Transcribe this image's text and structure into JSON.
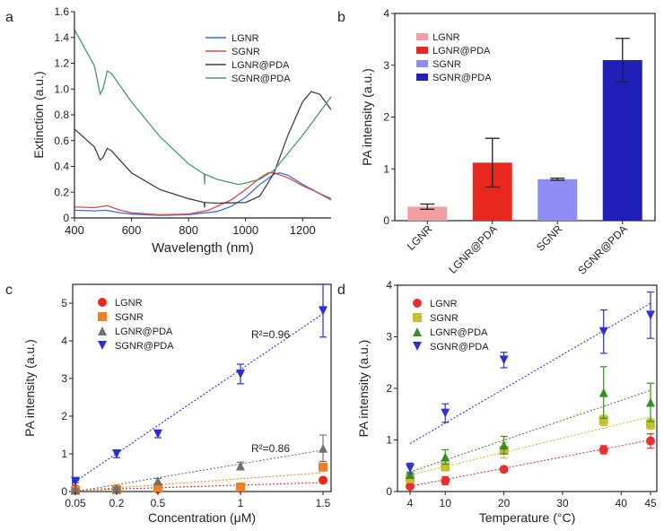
{
  "chart_data": [
    {
      "panel": "a",
      "type": "line",
      "xlabel": "Wavelength (nm)",
      "ylabel": "Extinction (a.u.)",
      "xlim": [
        400,
        1300
      ],
      "ylim": [
        0,
        1.6
      ],
      "xticks": [
        400,
        600,
        800,
        1000,
        1200
      ],
      "yticks": [
        0,
        0.2,
        0.4,
        0.6,
        0.8,
        1.0,
        1.2,
        1.4,
        1.6
      ],
      "ytick_labels": [
        "0",
        "0.2",
        "0.4",
        "0.6",
        "0.8",
        "1.0",
        "1.2",
        "1.4",
        "1.6"
      ],
      "legend": "top-right",
      "series": [
        {
          "name": "LGNR",
          "color": "#3a6fd8",
          "x": [
            400,
            470,
            510,
            560,
            600,
            700,
            800,
            900,
            950,
            1000,
            1050,
            1100,
            1120,
            1150,
            1200,
            1250,
            1300
          ],
          "y": [
            0.06,
            0.055,
            0.06,
            0.04,
            0.03,
            0.02,
            0.025,
            0.05,
            0.09,
            0.16,
            0.26,
            0.34,
            0.35,
            0.33,
            0.26,
            0.2,
            0.15
          ]
        },
        {
          "name": "SGNR",
          "color": "#e04848",
          "x": [
            400,
            470,
            515,
            560,
            600,
            700,
            800,
            870,
            950,
            1000,
            1050,
            1080,
            1100,
            1150,
            1200,
            1250,
            1300
          ],
          "y": [
            0.085,
            0.08,
            0.095,
            0.06,
            0.04,
            0.025,
            0.03,
            0.06,
            0.14,
            0.22,
            0.31,
            0.35,
            0.35,
            0.31,
            0.25,
            0.2,
            0.14
          ]
        },
        {
          "name": "LGNR@PDA",
          "color": "#404040",
          "x": [
            400,
            470,
            490,
            500,
            515,
            530,
            600,
            700,
            800,
            855,
            856,
            857,
            900,
            1000,
            1050,
            1100,
            1150,
            1200,
            1230,
            1260,
            1300
          ],
          "y": [
            0.69,
            0.55,
            0.45,
            0.47,
            0.54,
            0.52,
            0.35,
            0.22,
            0.15,
            0.12,
            0.08,
            0.12,
            0.115,
            0.12,
            0.17,
            0.35,
            0.65,
            0.9,
            0.98,
            0.96,
            0.84
          ]
        },
        {
          "name": "SGNR@PDA",
          "color": "#4a9a68",
          "x": [
            400,
            470,
            490,
            500,
            515,
            530,
            600,
            700,
            800,
            855,
            856,
            857,
            900,
            975,
            1000,
            1050,
            1100,
            1200,
            1300
          ],
          "y": [
            1.46,
            1.18,
            0.96,
            1.0,
            1.14,
            1.12,
            0.9,
            0.63,
            0.42,
            0.34,
            0.26,
            0.34,
            0.3,
            0.26,
            0.27,
            0.3,
            0.37,
            0.64,
            0.94
          ]
        }
      ]
    },
    {
      "panel": "b",
      "type": "bar",
      "ylabel": "PA intensity (a.u.)",
      "ylim": [
        0,
        4
      ],
      "yticks": [
        0,
        1,
        2,
        3,
        4
      ],
      "legend": "top-left",
      "categories": [
        "LGNR",
        "LGNR@PDA",
        "SGNR",
        "SGNR@PDA"
      ],
      "values": [
        0.27,
        1.12,
        0.8,
        3.1
      ],
      "errors": [
        0.05,
        0.47,
        0.02,
        0.42
      ],
      "colors": [
        "#f0a0a0",
        "#e8271e",
        "#8d8df5",
        "#2020b8"
      ]
    },
    {
      "panel": "c",
      "type": "scatter",
      "xlabel": "Concentration (μM)",
      "ylabel": "PA intensity (a.u.)",
      "ylim": [
        0,
        5.5
      ],
      "yticks": [
        0,
        1,
        2,
        3,
        4,
        5
      ],
      "xticks": [
        "0.05",
        "0.2",
        "0.5",
        "1",
        "1.5"
      ],
      "legend": "top-left",
      "annotations": [
        "R²=0.96",
        "R²=0.86"
      ],
      "series": [
        {
          "name": "LGNR",
          "color": "#e8271e",
          "marker": "circle",
          "y": [
            0.07,
            0.06,
            0.06,
            0.08,
            0.3
          ],
          "err": [
            0.02,
            0.02,
            0.02,
            0.03,
            0.03
          ],
          "fit": [
            0.03,
            0.24
          ]
        },
        {
          "name": "SGNR",
          "color": "#f08020",
          "marker": "square",
          "y": [
            0.03,
            0.05,
            0.1,
            0.12,
            0.65
          ],
          "err": [
            0.01,
            0.01,
            0.02,
            0.03,
            0.05
          ],
          "fit": [
            0.02,
            0.5
          ]
        },
        {
          "name": "LGNR@PDA",
          "color": "#707070",
          "marker": "triangle",
          "y": [
            0.05,
            0.08,
            0.28,
            0.68,
            1.15
          ],
          "err": [
            0.02,
            0.02,
            0.07,
            0.1,
            0.35
          ],
          "fit": [
            0.0,
            1.1
          ]
        },
        {
          "name": "SGNR@PDA",
          "color": "#2a2ae0",
          "marker": "triangle-down",
          "y": [
            0.27,
            1.0,
            1.53,
            3.12,
            4.8
          ],
          "err": [
            0.03,
            0.1,
            0.1,
            0.26,
            0.7
          ],
          "fit": [
            0.27,
            4.72
          ]
        }
      ]
    },
    {
      "panel": "d",
      "type": "scatter",
      "xlabel": "Temperature (°C)",
      "ylabel": "PA intensity (a.u.)",
      "xlim": [
        4,
        45
      ],
      "ylim": [
        0,
        4
      ],
      "yticks": [
        0,
        1,
        2,
        3,
        4
      ],
      "xticks": [
        4,
        10,
        20,
        30,
        40,
        45
      ],
      "x": [
        4,
        10,
        20,
        37,
        45
      ],
      "legend": "top-left",
      "series": [
        {
          "name": "LGNR",
          "color": "#e83030",
          "marker": "circle",
          "y": [
            0.1,
            0.21,
            0.43,
            0.81,
            0.98
          ],
          "err": [
            0.02,
            0.08,
            0.05,
            0.08,
            0.14
          ],
          "fit": [
            0.1,
            1.0
          ]
        },
        {
          "name": "SGNR",
          "color": "#c0c030",
          "marker": "square",
          "y": [
            0.25,
            0.48,
            0.8,
            1.38,
            1.31
          ],
          "err": [
            0.05,
            0.08,
            0.15,
            0.1,
            0.1
          ],
          "fit": [
            0.32,
            1.45
          ]
        },
        {
          "name": "LGNR@PDA",
          "color": "#3a8a2a",
          "marker": "triangle",
          "y": [
            0.33,
            0.67,
            0.9,
            1.92,
            1.73
          ],
          "err": [
            0.05,
            0.14,
            0.17,
            0.5,
            0.37
          ],
          "fit": [
            0.38,
            1.96
          ]
        },
        {
          "name": "SGNR@PDA",
          "color": "#3030d8",
          "marker": "triangle-down",
          "y": [
            0.45,
            1.52,
            2.55,
            3.1,
            3.42
          ],
          "err": [
            0.1,
            0.18,
            0.15,
            0.42,
            0.45
          ],
          "fit": [
            0.93,
            3.65
          ]
        }
      ]
    }
  ],
  "panel_labels": [
    "a",
    "b",
    "c",
    "d"
  ]
}
